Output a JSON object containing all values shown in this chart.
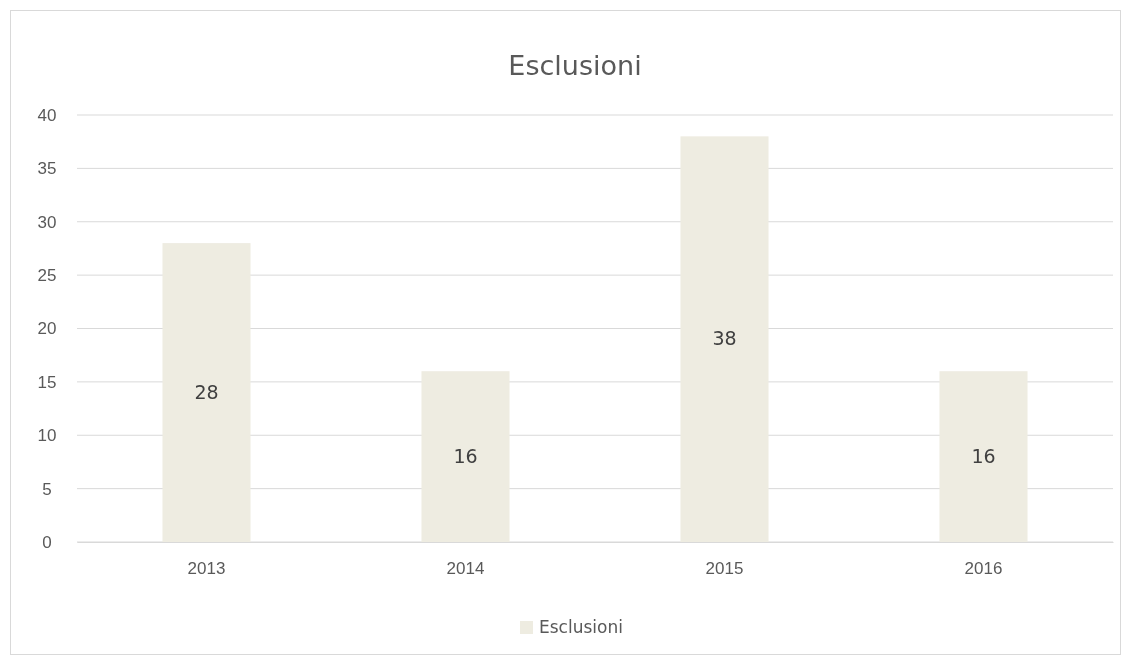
{
  "chart_data": {
    "type": "bar",
    "title": "Esclusioni",
    "categories": [
      "2013",
      "2014",
      "2015",
      "2016"
    ],
    "series": [
      {
        "name": "Esclusioni",
        "color": "#eeece1",
        "values": [
          28,
          16,
          38,
          16
        ]
      }
    ],
    "ylim": [
      0,
      40
    ],
    "yticks": [
      0,
      5,
      10,
      15,
      20,
      25,
      30,
      35,
      40
    ],
    "grid": "y",
    "legend": "bottom",
    "data_labels": true
  }
}
